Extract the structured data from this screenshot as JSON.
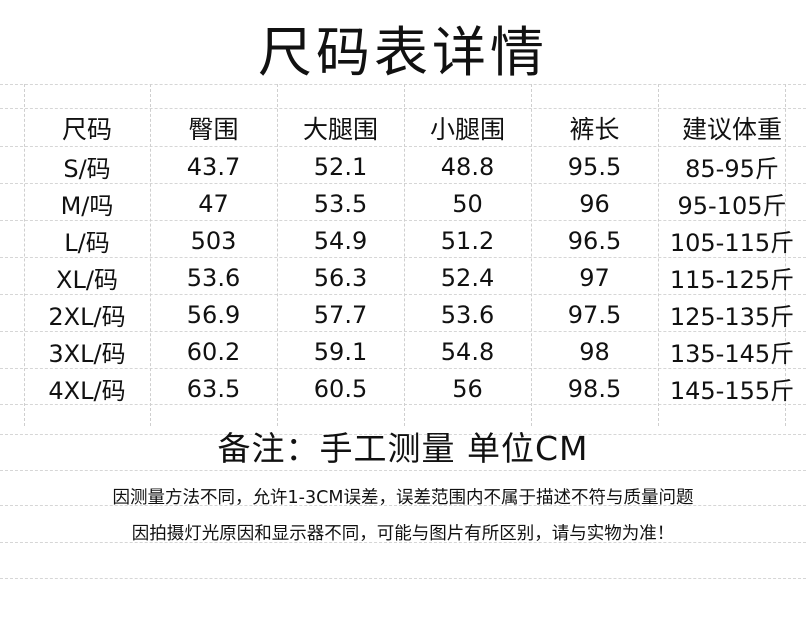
{
  "title": "尺码表详情",
  "table": {
    "headers": [
      "尺码",
      "臀围",
      "大腿围",
      "小腿围",
      "裤长",
      "建议体重"
    ],
    "rows": [
      [
        "S/码",
        "43.7",
        "52.1",
        "48.8",
        "95.5",
        "85-95斤"
      ],
      [
        "M/吗",
        "47",
        "53.5",
        "50",
        "96",
        "95-105斤"
      ],
      [
        "L/码",
        "503",
        "54.9",
        "51.2",
        "96.5",
        "105-115斤"
      ],
      [
        "XL/码",
        "53.6",
        "56.3",
        "52.4",
        "97",
        "115-125斤"
      ],
      [
        "2XL/码",
        "56.9",
        "57.7",
        "53.6",
        "97.5",
        "125-135斤"
      ],
      [
        "3XL/码",
        "60.2",
        "59.1",
        "54.8",
        "98",
        "135-145斤"
      ],
      [
        "4XL/码",
        "63.5",
        "60.5",
        "56",
        "98.5",
        "145-155斤"
      ]
    ]
  },
  "note": "备注：手工测量 单位CM",
  "disclaimers": [
    "因测量方法不同，允许1-3CM误差，误差范围内不属于描述不符与质量问题",
    "因拍摄灯光原因和显示器不同，可能与图片有所区别，请与实物为准！"
  ]
}
